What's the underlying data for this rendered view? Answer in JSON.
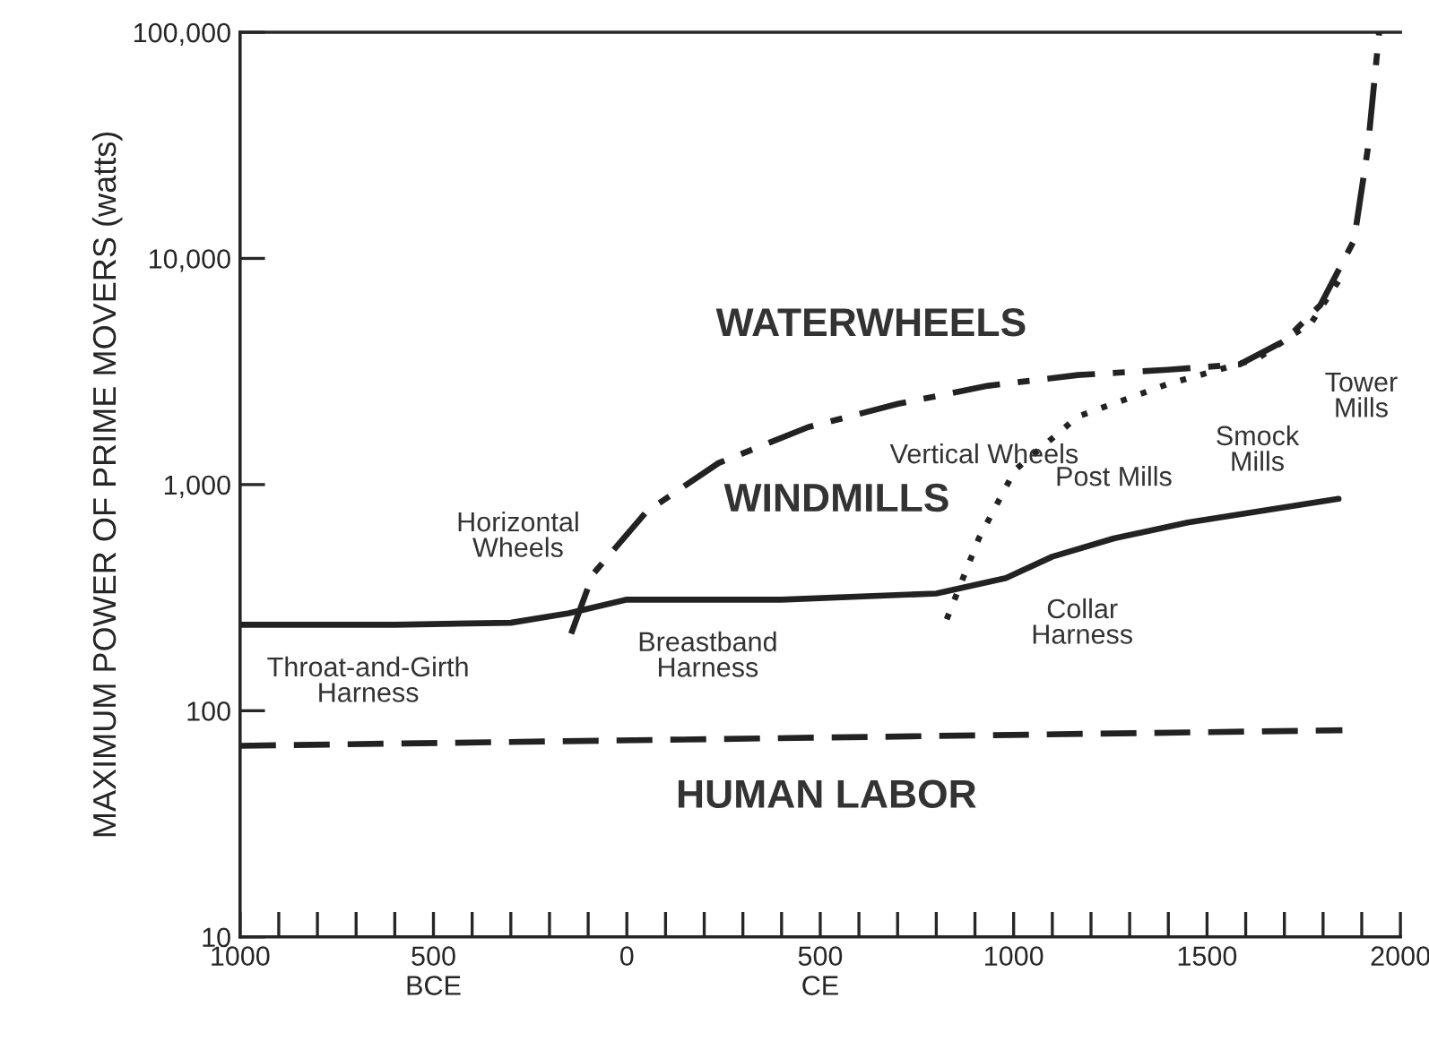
{
  "chart_data": {
    "type": "line",
    "ylabel": "MAXIMUM POWER OF PRIME MOVERS (watts)",
    "log": "y",
    "grid": false,
    "legend": false,
    "marker": "none",
    "xlim": [
      -1000,
      2000
    ],
    "ylim": [
      10,
      100000
    ],
    "xticks": [
      {
        "value": -1000,
        "label": "1000"
      },
      {
        "value": -900,
        "label": null
      },
      {
        "value": -800,
        "label": null
      },
      {
        "value": -700,
        "label": null
      },
      {
        "value": -600,
        "label": null
      },
      {
        "value": -500,
        "label": "500\nBCE"
      },
      {
        "value": -400,
        "label": null
      },
      {
        "value": -300,
        "label": null
      },
      {
        "value": -200,
        "label": null
      },
      {
        "value": -100,
        "label": null
      },
      0,
      {
        "value": 100,
        "label": null
      },
      {
        "value": 200,
        "label": null
      },
      {
        "value": 300,
        "label": null
      },
      {
        "value": 400,
        "label": null
      },
      {
        "value": 500,
        "label": "500\nCE"
      },
      {
        "value": 600,
        "label": null
      },
      {
        "value": 700,
        "label": null
      },
      {
        "value": 800,
        "label": null
      },
      {
        "value": 900,
        "label": null
      },
      1000,
      {
        "value": 1100,
        "label": null
      },
      {
        "value": 1200,
        "label": null
      },
      {
        "value": 1300,
        "label": null
      },
      {
        "value": 1400,
        "label": null
      },
      1500,
      {
        "value": 1600,
        "label": null
      },
      {
        "value": 1700,
        "label": null
      },
      {
        "value": 1800,
        "label": null
      },
      {
        "value": 1900,
        "label": null
      },
      2000
    ],
    "yticks": [
      10,
      100,
      {
        "value": 1000,
        "label": "1,000"
      },
      {
        "value": 10000,
        "label": "10,000"
      },
      {
        "value": 100000,
        "label": "100,000"
      }
    ],
    "series": [
      {
        "color": "#222222",
        "line_style": "dashed",
        "x": [
          -1000,
          1850
        ],
        "values": [
          70,
          82
        ]
      },
      {
        "color": "#222222",
        "line_style": "solid",
        "x": [
          -1000,
          -600,
          -300,
          -150,
          0,
          400,
          800,
          980,
          1100,
          1259,
          1450,
          1630,
          1840
        ],
        "values": [
          240,
          240,
          245,
          270,
          310,
          310,
          330,
          386,
          480,
          578,
          680,
          760,
          865
        ]
      },
      {
        "color": "#222222",
        "line_style": "dashdot",
        "x": [
          -144,
          -88,
          51,
          237,
          469,
          701,
          934,
          1166,
          1398,
          1584,
          1700,
          1793,
          1880,
          1915,
          1945
        ],
        "values": [
          219,
          401,
          760,
          1245,
          1795,
          2275,
          2735,
          3050,
          3220,
          3400,
          4320,
          6220,
          12000,
          30000,
          100000
        ]
      },
      {
        "color": "#222222",
        "line_style": "dotted",
        "x": [
          827,
          910,
          1003,
          1166,
          1398,
          1630,
          1770,
          1840
        ],
        "values": [
          254,
          578,
          1157,
          2000,
          2780,
          3600,
          5210,
          7950
        ]
      }
    ],
    "annotations": [
      {
        "text": "WATERWHEELS",
        "x": 632,
        "y": 2130
      },
      {
        "text": "Vertical Wheels",
        "x": 924,
        "y": 2715
      },
      {
        "text": "Horizontal\nWheels",
        "x": -88,
        "y": 401
      },
      {
        "text": "WINDMILLS",
        "x": 910,
        "y": 578
      },
      {
        "text": "Post Mills",
        "x": 1259,
        "y": 578
      },
      {
        "text": "Smock\nMills",
        "x": 1630,
        "y": 3600
      },
      {
        "text": "Tower\nMills",
        "x": 1770,
        "y": 5210
      },
      {
        "text": "Collar\nHarness",
        "x": 1100,
        "y": 480
      },
      {
        "text": "Breastband\nHarness",
        "x": 209,
        "y": 310
      },
      {
        "text": "Throat-and-Girth\nHarness",
        "x": -669,
        "y": 240
      },
      {
        "text": "HUMAN LABOR",
        "x": 516,
        "y": 76
      }
    ]
  }
}
